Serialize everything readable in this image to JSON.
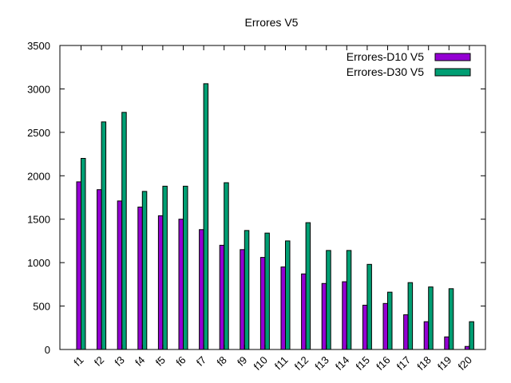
{
  "chart_data": {
    "type": "bar",
    "title": "Errores V5",
    "xlabel": "",
    "ylabel": "",
    "categories": [
      "f1",
      "f2",
      "f3",
      "f4",
      "f5",
      "f6",
      "f7",
      "f8",
      "f9",
      "f10",
      "f11",
      "f12",
      "f13",
      "f14",
      "f15",
      "f16",
      "f17",
      "f18",
      "f19",
      "f20"
    ],
    "series": [
      {
        "name": "Errores-D10 V5",
        "color": "#9400d3",
        "values": [
          1930,
          1840,
          1710,
          1640,
          1540,
          1500,
          1380,
          1200,
          1150,
          1060,
          950,
          870,
          760,
          780,
          510,
          530,
          400,
          320,
          145,
          35
        ]
      },
      {
        "name": "Errores-D30 V5",
        "color": "#009e73",
        "values": [
          2200,
          2620,
          2730,
          1820,
          1880,
          1880,
          3060,
          1920,
          1370,
          1340,
          1250,
          1460,
          1140,
          1140,
          980,
          660,
          770,
          720,
          700,
          320
        ]
      }
    ],
    "ylim": [
      0,
      3500
    ],
    "yticks": [
      0,
      500,
      1000,
      1500,
      2000,
      2500,
      3000,
      3500
    ],
    "grid": false,
    "legend_position": "top-right"
  }
}
